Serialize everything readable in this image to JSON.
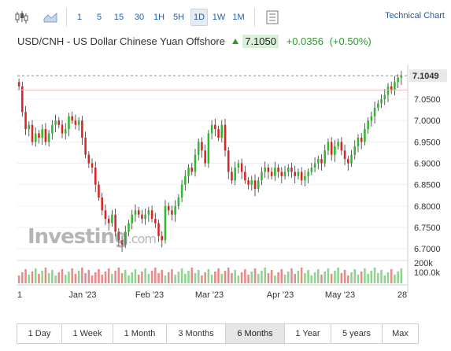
{
  "toolbar": {
    "chart_type_icons": [
      "candlestick-icon",
      "area-chart-icon"
    ],
    "intervals": [
      "1",
      "5",
      "15",
      "30",
      "1H",
      "5H",
      "1D",
      "1W",
      "1M"
    ],
    "active_interval": "1D",
    "technical_chart_label": "Technical Chart"
  },
  "header": {
    "title": "USD/CNH - US Dollar Chinese Yuan Offshore",
    "price": "7.1050",
    "change": "+0.0356",
    "change_pct": "(+0.50%)",
    "direction_icon": "up-arrow-icon"
  },
  "chart": {
    "current_price_label": "7.1049",
    "y_ticks": [
      "7.0500",
      "7.0000",
      "6.9500",
      "6.9000",
      "6.8500",
      "6.8000",
      "6.7500",
      "6.7000"
    ],
    "volume_ticks": [
      "200k",
      "100.0k"
    ],
    "x_ticks": [
      "1",
      "Jan '23",
      "Feb '23",
      "Mar '23",
      "Apr '23",
      "May '23",
      "28"
    ],
    "watermark": "Investing",
    "watermark_suffix": ".com",
    "colors": {
      "up": "#2eb82e",
      "down": "#dd2222",
      "vol_up": "#8fd38f",
      "vol_down": "#e88a8a",
      "price_line": "#f2b8b8"
    }
  },
  "chart_data": {
    "type": "candlestick",
    "ylim": [
      6.68,
      7.12
    ],
    "y_ticks": [
      7.05,
      7.0,
      6.95,
      6.9,
      6.85,
      6.8,
      6.75,
      6.7
    ],
    "current_price": 7.1049,
    "closes": [
      7.08,
      7.02,
      6.98,
      6.99,
      6.95,
      6.97,
      6.96,
      6.98,
      6.95,
      6.97,
      6.99,
      7.0,
      6.99,
      6.97,
      6.98,
      7.01,
      7.0,
      6.99,
      7.0,
      6.96,
      6.92,
      6.9,
      6.89,
      6.85,
      6.82,
      6.79,
      6.77,
      6.76,
      6.78,
      6.74,
      6.72,
      6.71,
      6.74,
      6.76,
      6.78,
      6.79,
      6.78,
      6.77,
      6.78,
      6.79,
      6.77,
      6.76,
      6.73,
      6.72,
      6.8,
      6.79,
      6.78,
      6.8,
      6.82,
      6.85,
      6.87,
      6.89,
      6.88,
      6.92,
      6.95,
      6.93,
      6.9,
      6.97,
      6.99,
      6.98,
      6.96,
      6.99,
      6.93,
      6.88,
      6.86,
      6.89,
      6.9,
      6.88,
      6.86,
      6.85,
      6.86,
      6.84,
      6.86,
      6.88,
      6.89,
      6.88,
      6.87,
      6.89,
      6.88,
      6.87,
      6.88,
      6.89,
      6.88,
      6.87,
      6.88,
      6.86,
      6.87,
      6.88,
      6.89,
      6.9,
      6.91,
      6.9,
      6.93,
      6.95,
      6.92,
      6.94,
      6.95,
      6.93,
      6.91,
      6.9,
      6.92,
      6.94,
      6.96,
      6.95,
      6.98,
      7.0,
      7.01,
      7.03,
      7.04,
      7.05,
      7.06,
      7.08,
      7.07,
      7.09,
      7.1,
      7.105
    ],
    "volume_scale": [
      0,
      200
    ]
  },
  "periods": {
    "items": [
      "1 Day",
      "1 Week",
      "1 Month",
      "3 Months",
      "6 Months",
      "1 Year",
      "5 years",
      "Max"
    ],
    "active": "6 Months"
  }
}
